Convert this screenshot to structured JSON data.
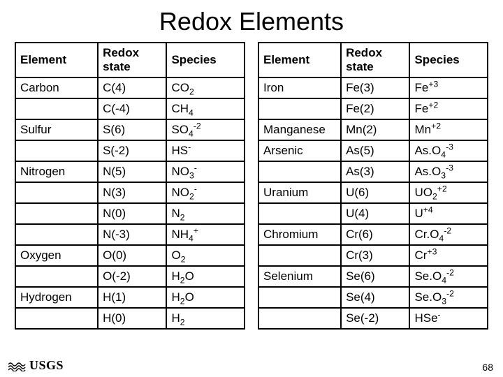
{
  "title": "Redox Elements",
  "headers": [
    "Element",
    "Redox state",
    "Species"
  ],
  "left_rows": [
    {
      "element": "Carbon",
      "state": "C(4)",
      "species": "CO<sub>2</sub>"
    },
    {
      "element": "",
      "state": "C(-4)",
      "species": "CH<sub>4</sub>"
    },
    {
      "element": "Sulfur",
      "state": "S(6)",
      "species": "SO<sub>4</sub><sup>-2</sup>"
    },
    {
      "element": "",
      "state": "S(-2)",
      "species": "HS<sup>-</sup>"
    },
    {
      "element": "Nitrogen",
      "state": "N(5)",
      "species": "NO<sub>3</sub><sup>-</sup>"
    },
    {
      "element": "",
      "state": "N(3)",
      "species": "NO<sub>2</sub><sup>-</sup>"
    },
    {
      "element": "",
      "state": "N(0)",
      "species": "N<sub>2</sub>"
    },
    {
      "element": "",
      "state": "N(-3)",
      "species": "NH<sub>4</sub><sup>+</sup>"
    },
    {
      "element": "Oxygen",
      "state": "O(0)",
      "species": "O<sub>2</sub>"
    },
    {
      "element": "",
      "state": "O(-2)",
      "species": "H<sub>2</sub>O"
    },
    {
      "element": "Hydrogen",
      "state": "H(1)",
      "species": "H<sub>2</sub>O"
    },
    {
      "element": "",
      "state": "H(0)",
      "species": "H<sub>2</sub>"
    }
  ],
  "right_rows": [
    {
      "element": "Iron",
      "state": "Fe(3)",
      "species": "Fe<sup>+3</sup>"
    },
    {
      "element": "",
      "state": "Fe(2)",
      "species": "Fe<sup>+2</sup>"
    },
    {
      "element": "Manganese",
      "state": "Mn(2)",
      "species": "Mn<sup>+2</sup>"
    },
    {
      "element": "Arsenic",
      "state": "As(5)",
      "species": "As.O<sub>4</sub><sup>-3</sup>"
    },
    {
      "element": "",
      "state": "As(3)",
      "species": "As.O<sub>3</sub><sup>-3</sup>"
    },
    {
      "element": "Uranium",
      "state": "U(6)",
      "species": "UO<sub>2</sub><sup>+2</sup>"
    },
    {
      "element": "",
      "state": "U(4)",
      "species": "U<sup>+4</sup>"
    },
    {
      "element": "Chromium",
      "state": "Cr(6)",
      "species": "Cr.O<sub>4</sub><sup>-2</sup>"
    },
    {
      "element": "",
      "state": "Cr(3)",
      "species": "Cr<sup>+3</sup>"
    },
    {
      "element": "Selenium",
      "state": "Se(6)",
      "species": "Se.O<sub>4</sub><sup>-2</sup>"
    },
    {
      "element": "",
      "state": "Se(4)",
      "species": "Se.O<sub>3</sub><sup>-2</sup>"
    },
    {
      "element": "",
      "state": "Se(-2)",
      "species": "HSe<sup>-</sup>"
    }
  ],
  "logo_text": "USGS",
  "page_number": "68"
}
